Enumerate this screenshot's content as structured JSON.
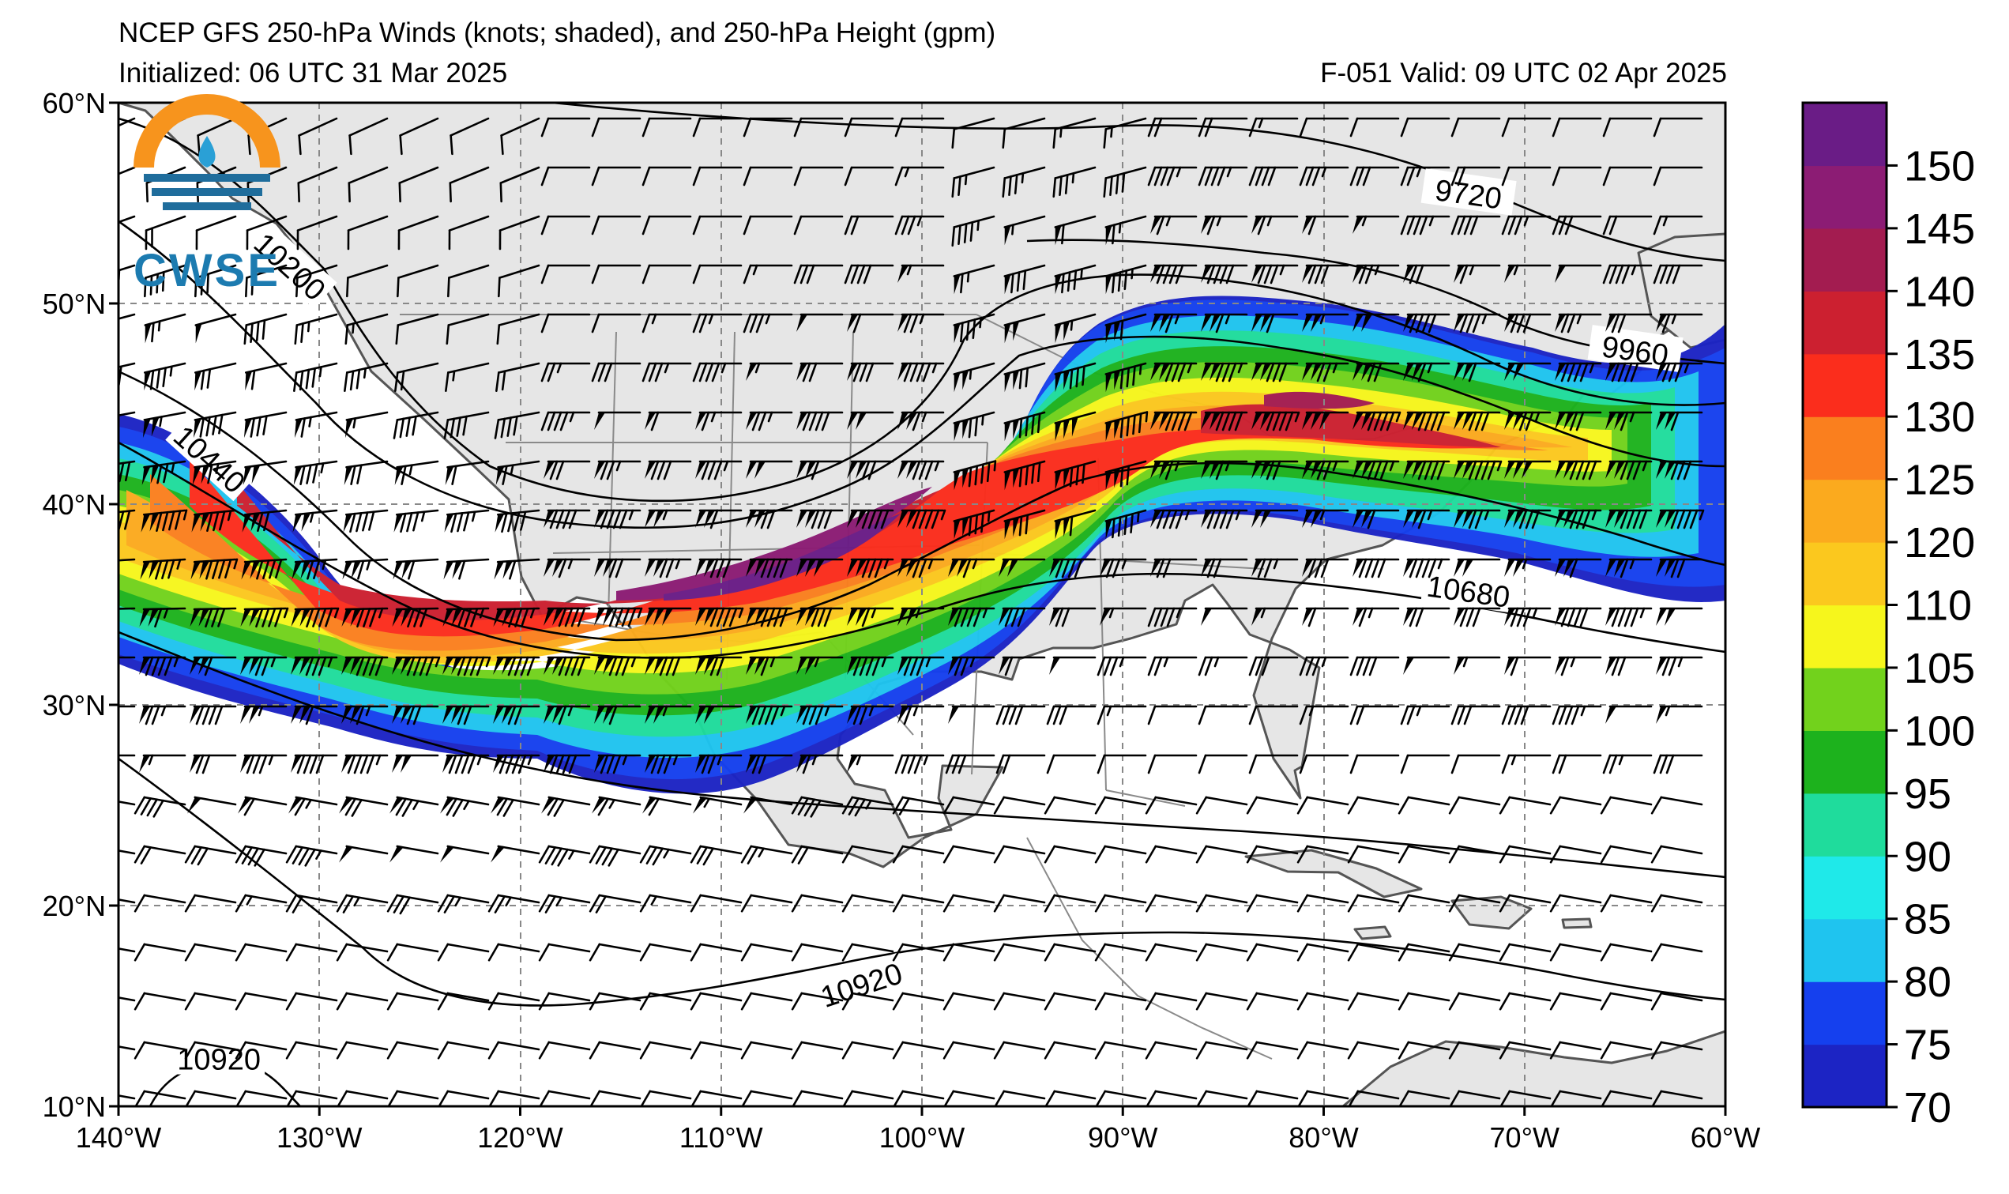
{
  "header": {
    "title": "NCEP GFS 250-hPa Winds (knots; shaded), and 250-hPa Height (gpm)",
    "init": "Initialized: 06 UTC 31 Mar 2025",
    "valid": "F-051  Valid: 09 UTC 02 Apr 2025"
  },
  "logo": {
    "text": "CWSE",
    "icon": "cwse-logo"
  },
  "map": {
    "lon_range": [
      -140,
      -60
    ],
    "lat_range": [
      10,
      60
    ],
    "lat_ticks": [
      {
        "v": 60,
        "label": "60°N"
      },
      {
        "v": 50,
        "label": "50°N"
      },
      {
        "v": 40,
        "label": "40°N"
      },
      {
        "v": 30,
        "label": "30°N"
      },
      {
        "v": 20,
        "label": "20°N"
      },
      {
        "v": 10,
        "label": "10°N"
      }
    ],
    "lon_ticks": [
      {
        "v": -140,
        "label": "140°W"
      },
      {
        "v": -130,
        "label": "130°W"
      },
      {
        "v": -120,
        "label": "120°W"
      },
      {
        "v": -110,
        "label": "110°W"
      },
      {
        "v": -100,
        "label": "100°W"
      },
      {
        "v": -90,
        "label": "90°W"
      },
      {
        "v": -80,
        "label": "80°W"
      },
      {
        "v": -70,
        "label": "70°W"
      },
      {
        "v": -60,
        "label": "60°W"
      }
    ],
    "contour_labels": [
      {
        "text": "9720",
        "lon": -72.8,
        "lat": 55.4,
        "rot": 8
      },
      {
        "text": "10200",
        "lon": -131.5,
        "lat": 51.8,
        "rot": 42
      },
      {
        "text": "9960",
        "lon": -64.5,
        "lat": 47.6,
        "rot": 8
      },
      {
        "text": "10440",
        "lon": -135.5,
        "lat": 42.2,
        "rot": 42
      },
      {
        "text": "10680",
        "lon": -72.8,
        "lat": 35.6,
        "rot": 8
      },
      {
        "text": "10920",
        "lon": -103.0,
        "lat": 16.0,
        "rot": -18
      },
      {
        "text": "10920",
        "lon": -135.0,
        "lat": 12.3,
        "rot": 0
      }
    ],
    "height_contour_values": [
      9720,
      9960,
      10200,
      10440,
      10680,
      10920
    ]
  },
  "colorbar": {
    "unit": "knots",
    "bins": [
      {
        "lo": 70,
        "color": "#1c24c4"
      },
      {
        "lo": 75,
        "color": "#1540ee"
      },
      {
        "lo": 80,
        "color": "#1fc4ef"
      },
      {
        "lo": 85,
        "color": "#1fe9e9"
      },
      {
        "lo": 90,
        "color": "#1fdc9c"
      },
      {
        "lo": 95,
        "color": "#1db21d"
      },
      {
        "lo": 100,
        "color": "#72d21c"
      },
      {
        "lo": 105,
        "color": "#f6f61c"
      },
      {
        "lo": 110,
        "color": "#fbc81e"
      },
      {
        "lo": 120,
        "color": "#fbaa1e"
      },
      {
        "lo": 125,
        "color": "#fa7f1e"
      },
      {
        "lo": 130,
        "color": "#fb2d1c"
      },
      {
        "lo": 135,
        "color": "#cc2030"
      },
      {
        "lo": 140,
        "color": "#a31c50"
      },
      {
        "lo": 145,
        "color": "#8c1c74"
      },
      {
        "lo": 150,
        "color": "#6a1c86"
      }
    ],
    "labels": [
      "70",
      "75",
      "80",
      "85",
      "90",
      "95",
      "100",
      "105",
      "110",
      "120",
      "125",
      "130",
      "135",
      "140",
      "145",
      "150"
    ]
  }
}
